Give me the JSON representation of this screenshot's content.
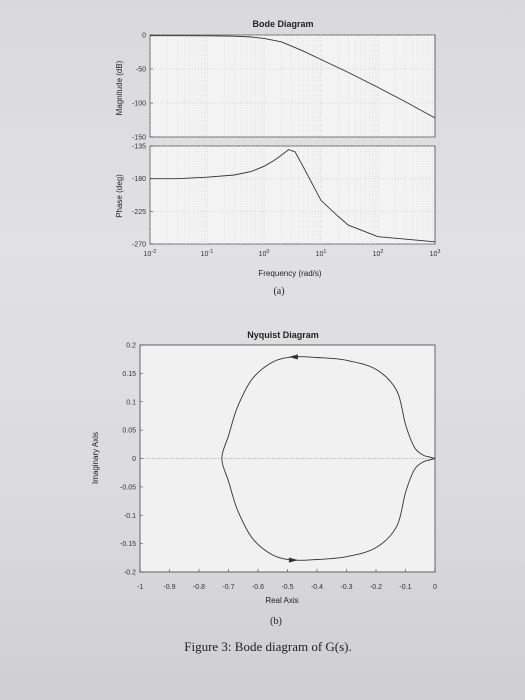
{
  "bode": {
    "title": "Bode Diagram",
    "magnitude_ylabel": "Magnitude (dB)",
    "phase_ylabel": "Phase (deg)",
    "xlabel": "Frequency (rad/s)",
    "caption": "(a)"
  },
  "nyquist": {
    "title": "Nyquist Diagram",
    "xlabel": "Real Axis",
    "ylabel": "Imaginary Axis",
    "caption": "(b)"
  },
  "figure_caption": "Figure 3: Bode diagram of G(s).",
  "chart_data": [
    {
      "type": "line",
      "title": "Bode Diagram",
      "panel": "magnitude",
      "ylabel": "Magnitude (dB)",
      "xscale": "log",
      "xlim": [
        0.01,
        1000
      ],
      "ylim": [
        -150,
        0
      ],
      "yticks": [
        0,
        -50,
        -100,
        -150
      ],
      "ytick_labels": [
        "0",
        "-50",
        "-100",
        "-150"
      ],
      "grid": true,
      "series": [
        {
          "x": [
            0.01,
            0.03,
            0.1,
            0.3,
            0.6,
            1,
            2,
            3,
            5,
            10,
            30,
            100,
            300,
            1000
          ],
          "y": [
            -1,
            -1,
            -1.2,
            -1.8,
            -3,
            -5,
            -10,
            -16,
            -24,
            -36,
            -55,
            -77,
            -98,
            -122
          ]
        }
      ]
    },
    {
      "type": "line",
      "panel": "phase",
      "ylabel": "Phase (deg)",
      "xlabel": "Frequency (rad/s)",
      "xscale": "log",
      "xlim": [
        0.01,
        1000
      ],
      "ylim": [
        -270,
        -135
      ],
      "xticks": [
        0.01,
        0.1,
        1,
        10,
        100,
        1000
      ],
      "xtick_labels": [
        "10-2",
        "10-1",
        "100",
        "101",
        "102",
        "103"
      ],
      "yticks": [
        -135,
        -180,
        -225,
        -270
      ],
      "ytick_labels": [
        "-135",
        "-180",
        "-225",
        "-270"
      ],
      "grid": true,
      "series": [
        {
          "x": [
            0.01,
            0.03,
            0.1,
            0.3,
            0.6,
            1,
            1.5,
            2,
            2.7,
            3.5,
            5,
            7,
            10,
            20,
            30,
            100,
            1000
          ],
          "y": [
            -180,
            -180,
            -178,
            -175,
            -170,
            -163,
            -155,
            -148,
            -140,
            -143,
            -165,
            -187,
            -210,
            -232,
            -244,
            -260,
            -267
          ]
        }
      ]
    },
    {
      "type": "line",
      "title": "Nyquist Diagram",
      "xlabel": "Real Axis",
      "ylabel": "Imaginary Axis",
      "xlim": [
        -1,
        0
      ],
      "ylim": [
        -0.2,
        0.2
      ],
      "xticks": [
        -1,
        -0.9,
        -0.8,
        -0.7,
        -0.6,
        -0.5,
        -0.4,
        -0.3,
        -0.2,
        -0.1,
        0
      ],
      "xtick_labels": [
        "-1",
        "-0.9",
        "-0.8",
        "-0.7",
        "-0.6",
        "-0.5",
        "-0.4",
        "-0.3",
        "-0.2",
        "-0.1",
        "0"
      ],
      "yticks": [
        0.2,
        0.15,
        0.1,
        0.05,
        0,
        -0.05,
        -0.1,
        -0.15,
        -0.2
      ],
      "ytick_labels": [
        "0.2",
        "0.15",
        "0.1",
        "0.05",
        "0",
        "-0.05",
        "-0.1",
        "-0.15",
        "-0.2"
      ],
      "grid": false,
      "series": [
        {
          "x": [
            0,
            -0.02,
            -0.04,
            -0.07,
            -0.1,
            -0.13,
            -0.2,
            -0.3,
            -0.4,
            -0.48,
            -0.55,
            -0.62,
            -0.67,
            -0.7,
            -0.72,
            -0.72,
            -0.7,
            -0.67,
            -0.62,
            -0.55,
            -0.48,
            -0.4,
            -0.3,
            -0.2,
            -0.13,
            -0.1,
            -0.07,
            -0.04,
            -0.02,
            0
          ],
          "y": [
            0,
            0.003,
            0.006,
            0.02,
            0.06,
            0.12,
            0.157,
            0.173,
            0.178,
            0.179,
            0.17,
            0.14,
            0.09,
            0.04,
            0.01,
            -0.01,
            -0.04,
            -0.09,
            -0.14,
            -0.17,
            -0.179,
            -0.178,
            -0.173,
            -0.157,
            -0.12,
            -0.06,
            -0.02,
            -0.006,
            -0.003,
            0
          ]
        }
      ]
    }
  ]
}
